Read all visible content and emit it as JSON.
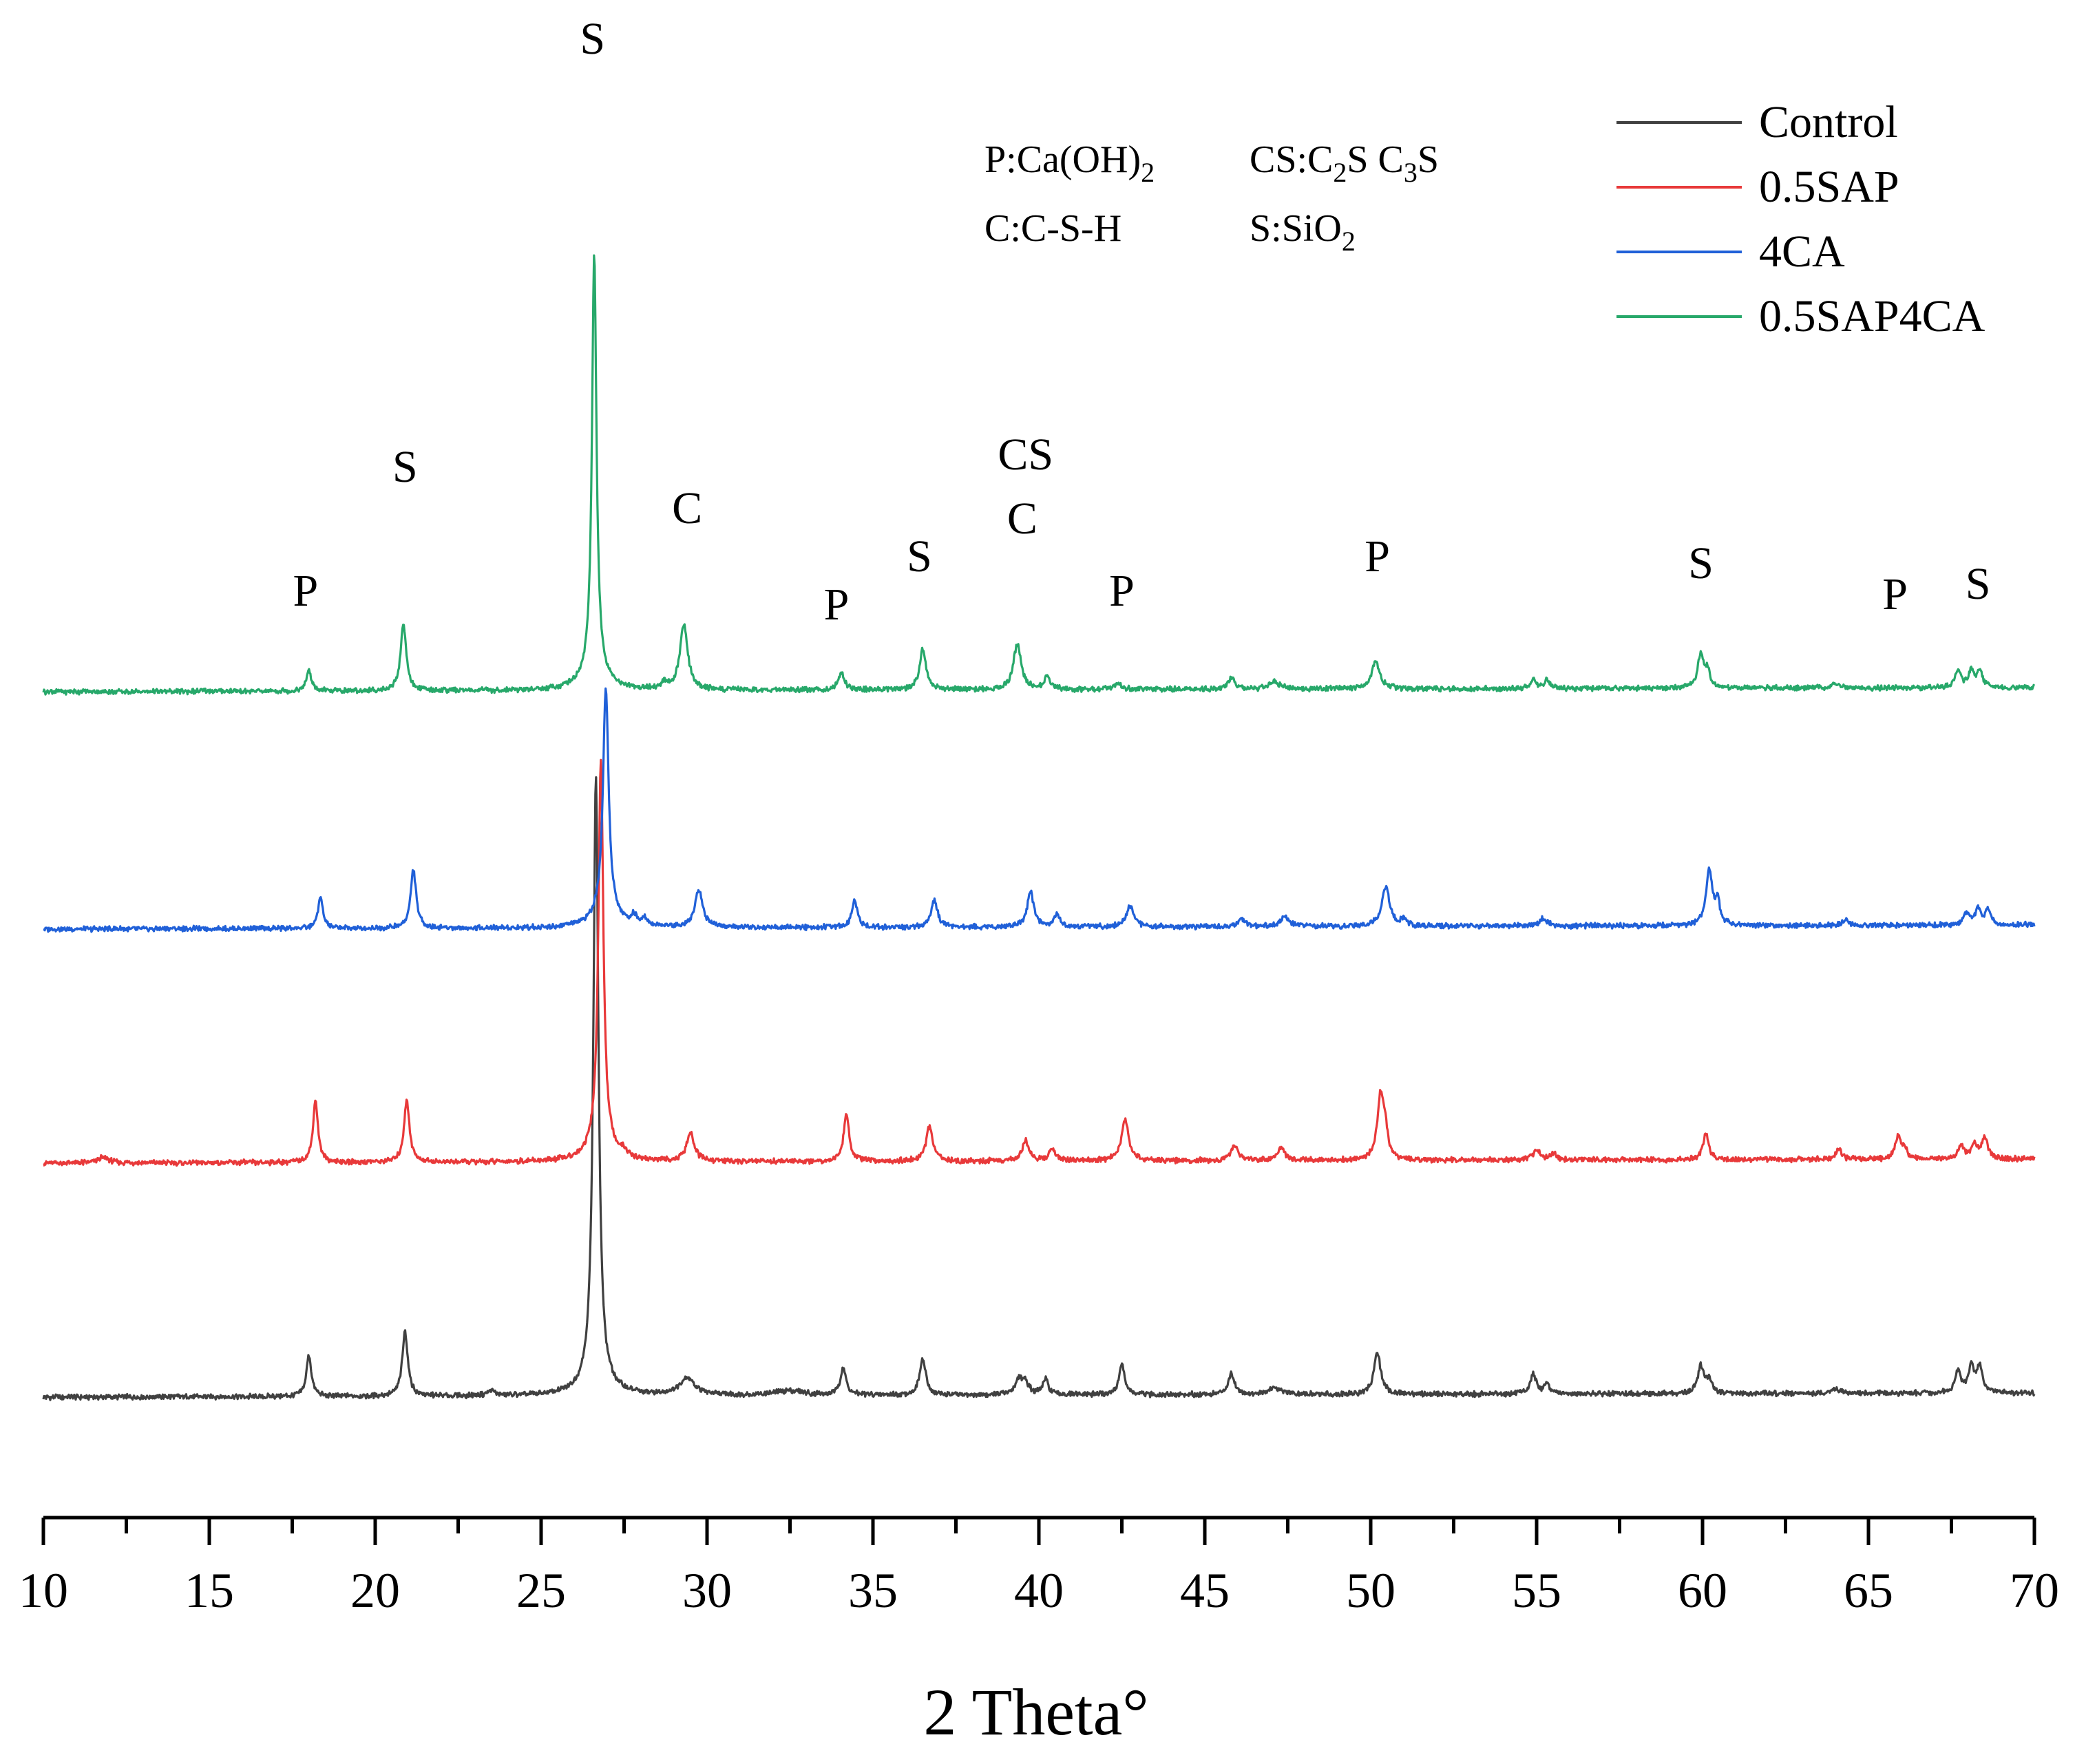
{
  "chart_data": {
    "type": "line",
    "title": "",
    "xlabel": "2 Theta°",
    "ylabel": "",
    "xlim": [
      10,
      70
    ],
    "xticks": [
      10,
      15,
      20,
      25,
      30,
      35,
      40,
      45,
      50,
      55,
      60,
      65,
      70
    ],
    "grid": false,
    "legend_position": "top-right",
    "phase_key": {
      "line1_left": {
        "prefix": "P:Ca(OH)",
        "sub": "2"
      },
      "line1_right": {
        "p1": "CS:C",
        "s1": "2",
        "p2": "S C",
        "s2": "3",
        "p3": "S"
      },
      "line2_left": {
        "text": "C:C-S-H"
      },
      "line2_right": {
        "prefix": "S:SiO",
        "sub": "2"
      }
    },
    "series": [
      {
        "name": "Control",
        "color": "#404040",
        "baseline": 0,
        "offset": 0,
        "peaks": [
          [
            18.0,
            60,
            0.09
          ],
          [
            20.9,
            95,
            0.1
          ],
          [
            23.5,
            8,
            0.12
          ],
          [
            26.65,
            880,
            0.09
          ],
          [
            26.65,
            22,
            0.45
          ],
          [
            29.4,
            25,
            0.28
          ],
          [
            32.5,
            7,
            0.5
          ],
          [
            34.1,
            40,
            0.1
          ],
          [
            36.5,
            52,
            0.11
          ],
          [
            39.4,
            22,
            0.13
          ],
          [
            39.6,
            15,
            0.13
          ],
          [
            40.2,
            22,
            0.1
          ],
          [
            42.5,
            45,
            0.1
          ],
          [
            45.8,
            30,
            0.12
          ],
          [
            47.1,
            10,
            0.2
          ],
          [
            50.2,
            62,
            0.12
          ],
          [
            54.9,
            30,
            0.1
          ],
          [
            55.3,
            14,
            0.1
          ],
          [
            59.95,
            40,
            0.11
          ],
          [
            60.2,
            18,
            0.1
          ],
          [
            64.0,
            8,
            0.12
          ],
          [
            67.7,
            32,
            0.1
          ],
          [
            68.1,
            38,
            0.1
          ],
          [
            68.35,
            38,
            0.1
          ]
        ]
      },
      {
        "name": "0.5SAP",
        "color": "#e8393a",
        "baseline": 0,
        "offset": 1,
        "peaks": [
          [
            11.8,
            8,
            0.2
          ],
          [
            18.2,
            90,
            0.09
          ],
          [
            20.95,
            90,
            0.1
          ],
          [
            26.8,
            560,
            0.09
          ],
          [
            26.8,
            22,
            0.45
          ],
          [
            27.5,
            8,
            0.1
          ],
          [
            29.5,
            40,
            0.14
          ],
          [
            34.2,
            68,
            0.1
          ],
          [
            36.7,
            50,
            0.12
          ],
          [
            39.6,
            30,
            0.12
          ],
          [
            40.4,
            20,
            0.1
          ],
          [
            42.6,
            60,
            0.13
          ],
          [
            45.9,
            22,
            0.12
          ],
          [
            47.3,
            16,
            0.15
          ],
          [
            50.3,
            95,
            0.12
          ],
          [
            50.45,
            30,
            0.08
          ],
          [
            55.0,
            15,
            0.12
          ],
          [
            55.5,
            10,
            0.1
          ],
          [
            60.1,
            38,
            0.1
          ],
          [
            64.1,
            16,
            0.1
          ],
          [
            65.9,
            36,
            0.1
          ],
          [
            66.1,
            12,
            0.08
          ],
          [
            67.8,
            20,
            0.1
          ],
          [
            68.2,
            22,
            0.1
          ],
          [
            68.5,
            32,
            0.1
          ]
        ]
      },
      {
        "name": "4CA",
        "color": "#2060d8",
        "baseline": 0,
        "offset": 2,
        "peaks": [
          [
            18.35,
            45,
            0.09
          ],
          [
            21.15,
            85,
            0.1
          ],
          [
            26.95,
            330,
            0.1
          ],
          [
            26.95,
            20,
            0.45
          ],
          [
            27.8,
            12,
            0.1
          ],
          [
            28.1,
            12,
            0.1
          ],
          [
            29.75,
            55,
            0.14
          ],
          [
            34.45,
            40,
            0.1
          ],
          [
            36.85,
            40,
            0.11
          ],
          [
            39.75,
            50,
            0.12
          ],
          [
            40.55,
            18,
            0.1
          ],
          [
            42.75,
            30,
            0.13
          ],
          [
            46.1,
            12,
            0.12
          ],
          [
            47.4,
            14,
            0.15
          ],
          [
            50.45,
            58,
            0.14
          ],
          [
            51.0,
            10,
            0.1
          ],
          [
            55.2,
            12,
            0.12
          ],
          [
            60.2,
            80,
            0.11
          ],
          [
            60.45,
            35,
            0.08
          ],
          [
            64.3,
            8,
            0.12
          ],
          [
            67.95,
            18,
            0.1
          ],
          [
            68.3,
            22,
            0.1
          ],
          [
            68.6,
            22,
            0.1
          ]
        ]
      },
      {
        "name": "0.5SAP4CA",
        "color": "#27a86a",
        "baseline": 0,
        "offset": 3,
        "peaks": [
          [
            18.0,
            30,
            0.09
          ],
          [
            20.85,
            100,
            0.1
          ],
          [
            26.6,
            610,
            0.08
          ],
          [
            26.6,
            25,
            0.45
          ],
          [
            29.3,
            95,
            0.14
          ],
          [
            28.7,
            8,
            0.1
          ],
          [
            34.05,
            24,
            0.12
          ],
          [
            36.5,
            60,
            0.11
          ],
          [
            39.35,
            66,
            0.14
          ],
          [
            40.25,
            20,
            0.1
          ],
          [
            42.4,
            10,
            0.12
          ],
          [
            45.8,
            16,
            0.12
          ],
          [
            47.1,
            10,
            0.2
          ],
          [
            50.15,
            40,
            0.14
          ],
          [
            54.9,
            14,
            0.1
          ],
          [
            55.3,
            12,
            0.1
          ],
          [
            59.95,
            50,
            0.11
          ],
          [
            60.15,
            22,
            0.08
          ],
          [
            64.0,
            6,
            0.12
          ],
          [
            67.7,
            26,
            0.1
          ],
          [
            68.1,
            24,
            0.1
          ],
          [
            68.35,
            24,
            0.1
          ]
        ]
      }
    ],
    "annotations": [
      {
        "label": "P",
        "x": 17.9,
        "above": 1
      },
      {
        "label": "S",
        "x": 20.9,
        "above": 1
      },
      {
        "label": "S",
        "x": 26.55,
        "above": 1
      },
      {
        "label": "C",
        "x": 29.4,
        "above": 1
      },
      {
        "label": "P",
        "x": 33.9,
        "above": 1
      },
      {
        "label": "S",
        "x": 36.4,
        "above": 1
      },
      {
        "label": "CS",
        "x": 39.6,
        "above": 2
      },
      {
        "label": "C",
        "x": 39.5,
        "above": 1
      },
      {
        "label": "P",
        "x": 42.5,
        "above": 1
      },
      {
        "label": "P",
        "x": 50.2,
        "above": 1
      },
      {
        "label": "S",
        "x": 59.95,
        "above": 1
      },
      {
        "label": "P",
        "x": 65.8,
        "above": 1
      },
      {
        "label": "S",
        "x": 68.3,
        "above": 1
      }
    ]
  }
}
